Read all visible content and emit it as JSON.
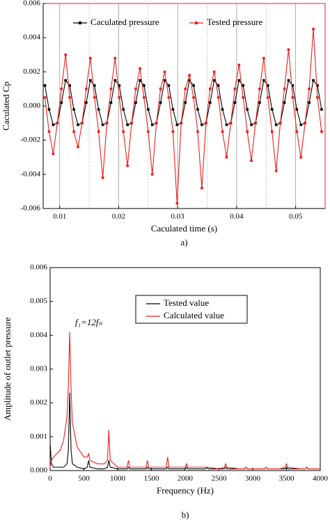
{
  "chart_data": [
    {
      "type": "line",
      "caption": "a)",
      "x_label": "Caculated time (s)",
      "y_label": "Caculated Cp",
      "xlim": [
        0.0072,
        0.055
      ],
      "ylim": [
        -0.006,
        0.006
      ],
      "xticks": [
        0.01,
        0.02,
        0.03,
        0.04,
        0.05
      ],
      "yticks": [
        -0.006,
        -0.004,
        -0.002,
        {
          "value": 0,
          "label": "0.000"
        },
        0.002,
        0.004,
        0.006
      ],
      "grid": true,
      "markers": true,
      "x": [
        0.0075,
        0.0082,
        0.0089,
        0.0096,
        0.0103,
        0.011,
        0.0117,
        0.0124,
        0.0131,
        0.0138,
        0.0145,
        0.0152,
        0.0159,
        0.0166,
        0.0173,
        0.018,
        0.0187,
        0.0194,
        0.0201,
        0.0208,
        0.0215,
        0.0222,
        0.0229,
        0.0236,
        0.0243,
        0.025,
        0.0257,
        0.0264,
        0.0271,
        0.0278,
        0.0285,
        0.0292,
        0.0299,
        0.0306,
        0.0313,
        0.032,
        0.0327,
        0.0334,
        0.0341,
        0.0348,
        0.0355,
        0.0362,
        0.0369,
        0.0376,
        0.0383,
        0.039,
        0.0397,
        0.0404,
        0.0411,
        0.0418,
        0.0425,
        0.0432,
        0.0439,
        0.0446,
        0.0453,
        0.046,
        0.0467,
        0.0474,
        0.0481,
        0.0488,
        0.0495,
        0.0502,
        0.0509,
        0.0516,
        0.0523,
        0.053,
        0.0537,
        0.0544
      ],
      "series": [
        {
          "name": "Caculated pressure",
          "color": "#000000",
          "values": [
            0.0012,
            -0.0002,
            -0.0011,
            -0.001,
            0.0002,
            0.0015,
            0.0012,
            -0.0002,
            -0.0011,
            -0.001,
            0.0002,
            0.0015,
            0.0012,
            -0.0002,
            -0.0011,
            -0.001,
            0.0002,
            0.0015,
            0.0012,
            -0.0002,
            -0.0011,
            -0.001,
            0.0002,
            0.0015,
            0.0012,
            -0.0002,
            -0.0011,
            -0.001,
            0.0002,
            0.0015,
            0.0012,
            -0.0002,
            -0.0011,
            -0.001,
            0.0002,
            0.0015,
            0.0012,
            -0.0002,
            -0.0011,
            -0.001,
            0.0002,
            0.0015,
            0.0012,
            -0.0002,
            -0.0011,
            -0.001,
            0.0002,
            0.0015,
            0.0012,
            -0.0002,
            -0.0011,
            -0.001,
            0.0002,
            0.0015,
            0.0012,
            -0.0002,
            -0.0011,
            -0.001,
            0.0002,
            0.0015,
            0.0012,
            -0.0002,
            -0.0011,
            -0.001,
            0.0002,
            0.0015,
            0.0012,
            -0.0002
          ]
        },
        {
          "name": "Tested pressure",
          "color": "#e8201c",
          "values": [
            0.0005,
            -0.0015,
            -0.0028,
            -0.001,
            0.001,
            0.003,
            0.0005,
            -0.0015,
            -0.0024,
            -0.001,
            0.001,
            0.0028,
            0.0005,
            -0.0015,
            -0.0042,
            -0.001,
            0.001,
            0.0028,
            0.0005,
            -0.0015,
            -0.0035,
            -0.001,
            0.001,
            0.0022,
            0.0005,
            -0.0015,
            -0.004,
            -0.001,
            0.001,
            0.002,
            0.0005,
            -0.0015,
            -0.0057,
            -0.001,
            0.001,
            0.0018,
            0.0005,
            -0.0015,
            -0.0048,
            -0.001,
            0.001,
            0.002,
            0.0005,
            -0.0015,
            -0.003,
            -0.001,
            0.001,
            0.0024,
            0.0005,
            -0.0015,
            -0.0032,
            -0.001,
            0.001,
            0.0028,
            0.0005,
            -0.0015,
            -0.0038,
            -0.001,
            0.001,
            0.0033,
            0.0005,
            -0.0015,
            -0.003,
            -0.001,
            0.001,
            0.0045,
            0.0005,
            -0.0015
          ]
        }
      ]
    },
    {
      "type": "line",
      "caption": "b)",
      "x_label": "Frequency (Hz)",
      "y_label": "Amplitude of outlet pressure",
      "annotation": "f₁=12fₙ",
      "xlim": [
        0,
        4000
      ],
      "ylim": [
        0,
        0.006
      ],
      "xticks": [
        0,
        500,
        1000,
        1500,
        2000,
        2500,
        3000,
        3500,
        4000
      ],
      "yticks": [
        {
          "value": 0,
          "label": "0.000"
        },
        0.001,
        0.002,
        0.003,
        0.004,
        0.005,
        0.006
      ],
      "grid": false,
      "markers": false,
      "x": [
        0,
        20,
        50,
        100,
        150,
        200,
        250,
        270,
        290,
        310,
        330,
        400,
        500,
        550,
        570,
        590,
        700,
        800,
        850,
        870,
        890,
        1000,
        1140,
        1160,
        1180,
        1300,
        1420,
        1440,
        1460,
        1600,
        1720,
        1740,
        1760,
        1900,
        2000,
        2020,
        2040,
        2200,
        2300,
        2320,
        2340,
        2500,
        2580,
        2600,
        2620,
        2800,
        2880,
        2900,
        2920,
        3100,
        3180,
        3200,
        3220,
        3400,
        3480,
        3500,
        3520,
        3700,
        3780,
        3800,
        3820,
        4000
      ],
      "series": [
        {
          "name": "Tested value",
          "color": "#000000",
          "values": [
            0.0008,
            0.0002,
            0.0001,
            0.0001,
            0.0001,
            0.0001,
            0.0002,
            0.0006,
            0.0023,
            0.0006,
            0.0002,
            0.0001,
            5e-05,
            0.0001,
            0.0003,
            0.0001,
            5e-05,
            5e-05,
            0.0001,
            0.0003,
            0.0001,
            5e-05,
            5e-05,
            0.0001,
            5e-05,
            5e-05,
            5e-05,
            0.0001,
            5e-05,
            5e-05,
            5e-05,
            0.0001,
            5e-05,
            5e-05,
            5e-05,
            0.0001,
            5e-05,
            5e-05,
            5e-05,
            0.0001,
            5e-05,
            5e-05,
            5e-05,
            0.0001,
            5e-05,
            5e-05,
            5e-05,
            0.0001,
            5e-05,
            5e-05,
            5e-05,
            0.0001,
            5e-05,
            5e-05,
            5e-05,
            0.0001,
            5e-05,
            5e-05,
            5e-05,
            0.0001,
            5e-05,
            5e-05
          ]
        },
        {
          "name": "Calculated value",
          "color": "#e8201c",
          "values": [
            0.0001,
            0.0003,
            0.0004,
            0.0005,
            0.0006,
            0.0009,
            0.0016,
            0.0025,
            0.0041,
            0.0024,
            0.0014,
            0.0007,
            0.0004,
            0.0004,
            0.0005,
            0.0003,
            0.0002,
            0.0002,
            0.0003,
            0.0012,
            0.0003,
            0.0001,
            0.0001,
            0.0003,
            0.0001,
            0.0001,
            0.0001,
            0.0003,
            0.0001,
            0.0001,
            0.0001,
            0.0004,
            0.0001,
            0.0001,
            0.0001,
            0.0002,
            0.0001,
            0.0001,
            0.0001,
            0.0001,
            0.0001,
            5e-05,
            0.0001,
            0.0002,
            0.0001,
            5e-05,
            5e-05,
            0.0001,
            5e-05,
            5e-05,
            5e-05,
            0.0001,
            5e-05,
            5e-05,
            0.0001,
            0.0002,
            0.0001,
            5e-05,
            5e-05,
            0.0001,
            5e-05,
            5e-05
          ]
        }
      ]
    }
  ]
}
